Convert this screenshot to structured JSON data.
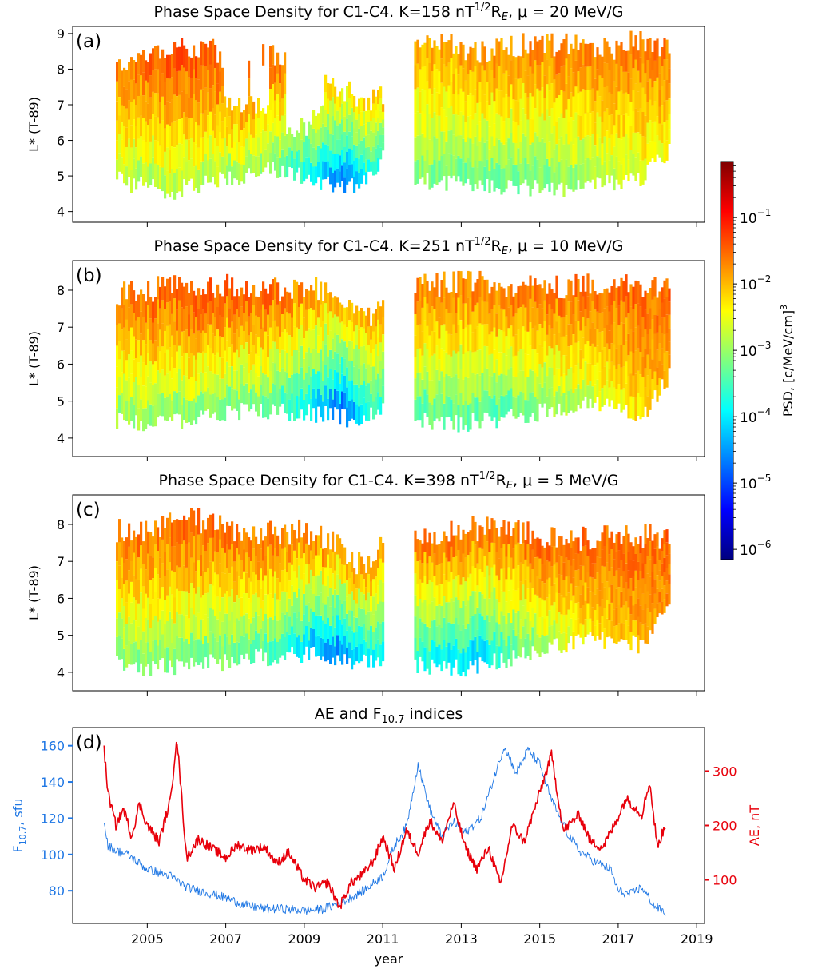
{
  "colorbar": {
    "label": "PSD, [c/MeV/cm]",
    "label_sup": "3",
    "scale": "log",
    "range": [
      7e-07,
      0.7
    ],
    "ticks": [
      {
        "base": "10",
        "exp": "−1",
        "value": 0.1
      },
      {
        "base": "10",
        "exp": "−2",
        "value": 0.01
      },
      {
        "base": "10",
        "exp": "−3",
        "value": 0.001
      },
      {
        "base": "10",
        "exp": "−4",
        "value": 0.0001
      },
      {
        "base": "10",
        "exp": "−5",
        "value": 1e-05
      },
      {
        "base": "10",
        "exp": "−6",
        "value": 1e-06
      }
    ],
    "colormap": [
      "#00007f",
      "#0000ff",
      "#007fff",
      "#00ffff",
      "#7fff7f",
      "#ffff00",
      "#ff7f00",
      "#ff0000",
      "#7f0000"
    ]
  },
  "x_axis": {
    "label": "year",
    "ticks": [
      "2005",
      "2007",
      "2009",
      "2011",
      "2013",
      "2015",
      "2017",
      "2019"
    ],
    "range": [
      2003.1,
      2019.2
    ]
  },
  "chart_data": [
    {
      "type": "heatmap",
      "panel_label": "(a)",
      "title": {
        "pre": "Phase Space Density for C1-C4. K=158 nT",
        "sup": "1/2",
        "mid": "R",
        "sub": "E",
        "post": ", μ = 20 MeV/G"
      },
      "ylabel": "L* (T-89)",
      "ylim": [
        3.7,
        9.2
      ],
      "yticks": [
        "4",
        "5",
        "6",
        "7",
        "8",
        "9"
      ],
      "x_range": [
        2003.1,
        2019.2
      ],
      "data_segments": [
        [
          2004.2,
          2011.0
        ],
        [
          2011.8,
          2018.3
        ]
      ],
      "L_max": [
        [
          2004.2,
          8.1
        ],
        [
          2004.6,
          8.3
        ],
        [
          2005.0,
          8.5
        ],
        [
          2005.5,
          8.6
        ],
        [
          2006.0,
          8.5
        ],
        [
          2006.5,
          8.6
        ],
        [
          2007.0,
          8.3
        ],
        [
          2007.5,
          8.0
        ],
        [
          2008.0,
          8.5
        ],
        [
          2008.5,
          8.4
        ],
        [
          2009.0,
          8.3
        ],
        [
          2009.5,
          7.7
        ],
        [
          2010.0,
          7.4
        ],
        [
          2010.5,
          7.1
        ],
        [
          2011.0,
          7.3
        ],
        [
          2011.8,
          8.8
        ],
        [
          2012.5,
          8.7
        ],
        [
          2013.5,
          8.5
        ],
        [
          2014.5,
          8.7
        ],
        [
          2015.5,
          8.7
        ],
        [
          2016.5,
          8.5
        ],
        [
          2017.5,
          8.8
        ],
        [
          2018.3,
          8.6
        ]
      ],
      "L_min": [
        [
          2004.2,
          4.9
        ],
        [
          2004.6,
          4.6
        ],
        [
          2005.0,
          4.7
        ],
        [
          2005.5,
          4.4
        ],
        [
          2006.0,
          4.6
        ],
        [
          2006.5,
          4.7
        ],
        [
          2007.0,
          4.8
        ],
        [
          2007.5,
          4.9
        ],
        [
          2008.0,
          5.2
        ],
        [
          2008.5,
          5.0
        ],
        [
          2009.0,
          4.9
        ],
        [
          2009.5,
          4.7
        ],
        [
          2010.0,
          4.6
        ],
        [
          2010.5,
          4.7
        ],
        [
          2011.0,
          5.5
        ],
        [
          2011.8,
          4.8
        ],
        [
          2012.5,
          4.7
        ],
        [
          2013.5,
          4.6
        ],
        [
          2014.5,
          4.6
        ],
        [
          2015.5,
          4.5
        ],
        [
          2016.5,
          4.7
        ],
        [
          2017.5,
          4.8
        ],
        [
          2018.3,
          5.6
        ]
      ],
      "psd_log10_at_Lmin": [
        [
          2004.2,
          -3.0
        ],
        [
          2006.0,
          -3.0
        ],
        [
          2008.0,
          -3.2
        ],
        [
          2009.3,
          -4.3
        ],
        [
          2010.0,
          -5.2
        ],
        [
          2010.6,
          -4.0
        ],
        [
          2011.8,
          -3.3
        ],
        [
          2014.0,
          -3.5
        ],
        [
          2016.0,
          -3.2
        ],
        [
          2018.3,
          -2.5
        ]
      ],
      "psd_log10_at_Lmax": [
        [
          2004.2,
          -1.6
        ],
        [
          2006.0,
          -1.3
        ],
        [
          2008.0,
          -1.4
        ],
        [
          2010.0,
          -2.2
        ],
        [
          2011.0,
          -2.0
        ],
        [
          2011.8,
          -1.9
        ],
        [
          2014.0,
          -1.7
        ],
        [
          2016.0,
          -1.6
        ],
        [
          2018.3,
          -1.6
        ]
      ],
      "gaps": [
        {
          "x": [
            2006.9,
            2007.5
          ],
          "L": [
            7.0,
            8.4
          ]
        },
        {
          "x": [
            2007.6,
            2008.1
          ],
          "L": [
            7.0,
            8.4
          ]
        },
        {
          "x": [
            2008.5,
            2009.2
          ],
          "L": [
            6.4,
            8.5
          ]
        },
        {
          "x": [
            2009.2,
            2009.5
          ],
          "L": [
            6.8,
            8.5
          ]
        }
      ]
    },
    {
      "type": "heatmap",
      "panel_label": "(b)",
      "title": {
        "pre": "Phase Space Density for C1-C4. K=251 nT",
        "sup": "1/2",
        "mid": "R",
        "sub": "E",
        "post": ", μ = 10 MeV/G"
      },
      "ylabel": "L* (T-89)",
      "ylim": [
        3.5,
        8.8
      ],
      "yticks": [
        "4",
        "5",
        "6",
        "7",
        "8"
      ],
      "x_range": [
        2003.1,
        2019.2
      ],
      "data_segments": [
        [
          2004.2,
          2011.0
        ],
        [
          2011.8,
          2018.3
        ]
      ],
      "L_max": [
        [
          2004.2,
          7.9
        ],
        [
          2005.0,
          8.0
        ],
        [
          2006.0,
          8.2
        ],
        [
          2007.0,
          8.1
        ],
        [
          2008.0,
          8.0
        ],
        [
          2009.0,
          8.1
        ],
        [
          2009.7,
          7.9
        ],
        [
          2010.2,
          7.3
        ],
        [
          2010.6,
          7.2
        ],
        [
          2011.0,
          7.8
        ],
        [
          2011.8,
          8.1
        ],
        [
          2013.0,
          8.2
        ],
        [
          2014.5,
          8.1
        ],
        [
          2016.0,
          8.1
        ],
        [
          2017.0,
          8.2
        ],
        [
          2018.3,
          8.0
        ]
      ],
      "L_min": [
        [
          2004.2,
          4.4
        ],
        [
          2005.0,
          4.3
        ],
        [
          2006.0,
          4.4
        ],
        [
          2007.0,
          4.6
        ],
        [
          2008.0,
          4.6
        ],
        [
          2009.0,
          4.6
        ],
        [
          2009.7,
          4.5
        ],
        [
          2010.3,
          4.4
        ],
        [
          2010.8,
          4.6
        ],
        [
          2011.0,
          4.6
        ],
        [
          2011.8,
          4.4
        ],
        [
          2013.0,
          4.3
        ],
        [
          2014.0,
          4.4
        ],
        [
          2015.0,
          4.6
        ],
        [
          2016.0,
          4.8
        ],
        [
          2017.0,
          4.8
        ],
        [
          2017.5,
          4.3
        ],
        [
          2018.3,
          5.6
        ]
      ],
      "psd_log10_at_Lmin": [
        [
          2004.2,
          -3.2
        ],
        [
          2006.0,
          -3.3
        ],
        [
          2008.0,
          -3.5
        ],
        [
          2009.5,
          -4.6
        ],
        [
          2010.0,
          -5.3
        ],
        [
          2010.6,
          -4.0
        ],
        [
          2011.8,
          -3.6
        ],
        [
          2014.0,
          -3.6
        ],
        [
          2016.0,
          -3.0
        ],
        [
          2018.3,
          -2.0
        ]
      ],
      "psd_log10_at_Lmax": [
        [
          2004.2,
          -1.6
        ],
        [
          2006.0,
          -1.3
        ],
        [
          2008.0,
          -1.4
        ],
        [
          2010.0,
          -1.9
        ],
        [
          2011.0,
          -1.8
        ],
        [
          2011.8,
          -1.6
        ],
        [
          2014.0,
          -1.6
        ],
        [
          2016.0,
          -1.5
        ],
        [
          2018.3,
          -1.5
        ]
      ],
      "gaps": []
    },
    {
      "type": "heatmap",
      "panel_label": "(c)",
      "title": {
        "pre": "Phase Space Density for C1-C4. K=398 nT",
        "sup": "1/2",
        "mid": "R",
        "sub": "E",
        "post": ", μ = 5 MeV/G"
      },
      "ylabel": "L* (T-89)",
      "ylim": [
        3.5,
        8.8
      ],
      "yticks": [
        "4",
        "5",
        "6",
        "7",
        "8"
      ],
      "x_range": [
        2003.1,
        2019.2
      ],
      "data_segments": [
        [
          2004.2,
          2011.0
        ],
        [
          2011.8,
          2018.3
        ]
      ],
      "L_max": [
        [
          2004.2,
          7.8
        ],
        [
          2005.0,
          7.8
        ],
        [
          2006.0,
          8.2
        ],
        [
          2007.0,
          7.9
        ],
        [
          2008.0,
          7.8
        ],
        [
          2009.0,
          7.8
        ],
        [
          2009.7,
          7.6
        ],
        [
          2010.2,
          7.0
        ],
        [
          2010.6,
          7.0
        ],
        [
          2011.0,
          7.5
        ],
        [
          2011.8,
          7.6
        ],
        [
          2013.0,
          7.9
        ],
        [
          2014.5,
          7.8
        ],
        [
          2016.0,
          7.6
        ],
        [
          2017.0,
          7.8
        ],
        [
          2018.3,
          7.6
        ]
      ],
      "L_min": [
        [
          2004.2,
          4.1
        ],
        [
          2005.0,
          4.0
        ],
        [
          2006.0,
          4.1
        ],
        [
          2007.0,
          4.2
        ],
        [
          2008.0,
          4.3
        ],
        [
          2009.0,
          4.4
        ],
        [
          2009.7,
          4.3
        ],
        [
          2010.3,
          4.1
        ],
        [
          2010.8,
          4.2
        ],
        [
          2011.0,
          4.3
        ],
        [
          2011.8,
          4.1
        ],
        [
          2013.0,
          4.0
        ],
        [
          2014.0,
          4.2
        ],
        [
          2015.0,
          4.5
        ],
        [
          2016.0,
          4.7
        ],
        [
          2017.0,
          4.8
        ],
        [
          2017.5,
          4.6
        ],
        [
          2018.3,
          5.6
        ]
      ],
      "psd_log10_at_Lmin": [
        [
          2004.2,
          -3.3
        ],
        [
          2006.0,
          -3.4
        ],
        [
          2008.0,
          -3.6
        ],
        [
          2009.5,
          -4.8
        ],
        [
          2010.0,
          -5.0
        ],
        [
          2010.6,
          -4.2
        ],
        [
          2011.8,
          -4.0
        ],
        [
          2013.5,
          -4.5
        ],
        [
          2014.0,
          -3.8
        ],
        [
          2016.0,
          -2.5
        ],
        [
          2018.3,
          -1.8
        ]
      ],
      "psd_log10_at_Lmax": [
        [
          2004.2,
          -1.6
        ],
        [
          2006.0,
          -1.4
        ],
        [
          2008.0,
          -1.5
        ],
        [
          2010.0,
          -1.7
        ],
        [
          2011.0,
          -1.7
        ],
        [
          2011.8,
          -1.5
        ],
        [
          2014.0,
          -1.5
        ],
        [
          2016.0,
          -1.5
        ],
        [
          2018.3,
          -1.5
        ]
      ],
      "gaps": []
    },
    {
      "type": "line",
      "panel_label": "(d)",
      "title": {
        "pre": "AE and F",
        "sub": "10.7",
        "post": " indices"
      },
      "xlabel": "year",
      "x_range": [
        2003.1,
        2019.2
      ],
      "left_axis": {
        "label_pre": "F",
        "label_sub": "10.7",
        "label_post": ", sfu",
        "ylim": [
          62,
          170
        ],
        "ticks": [
          "80",
          "100",
          "120",
          "140",
          "160"
        ],
        "color": "#1f77e4"
      },
      "right_axis": {
        "label": "AE, nT",
        "ylim": [
          20,
          380
        ],
        "ticks": [
          "100",
          "200",
          "300"
        ],
        "color": "#e8000b"
      },
      "series": [
        {
          "name": "F10.7",
          "axis": "left",
          "color": "#1f77e4",
          "x": [
            2003.9,
            2004.0,
            2004.2,
            2004.5,
            2004.8,
            2005.0,
            2005.3,
            2005.6,
            2006.0,
            2006.3,
            2006.7,
            2007.0,
            2007.5,
            2008.0,
            2008.5,
            2009.0,
            2009.5,
            2010.0,
            2010.5,
            2011.0,
            2011.3,
            2011.6,
            2011.9,
            2012.2,
            2012.5,
            2012.8,
            2013.1,
            2013.5,
            2013.8,
            2014.1,
            2014.4,
            2014.7,
            2015.0,
            2015.3,
            2015.7,
            2016.0,
            2016.4,
            2016.8,
            2017.0,
            2017.3,
            2017.6,
            2017.9,
            2018.2
          ],
          "y": [
            118,
            105,
            102,
            100,
            95,
            92,
            90,
            88,
            82,
            80,
            78,
            76,
            72,
            70,
            70,
            69,
            70,
            74,
            80,
            88,
            105,
            115,
            150,
            125,
            110,
            118,
            112,
            120,
            140,
            160,
            145,
            158,
            150,
            130,
            112,
            102,
            96,
            92,
            80,
            78,
            82,
            72,
            68
          ]
        },
        {
          "name": "AE",
          "axis": "right",
          "color": "#e8000b",
          "x": [
            2003.9,
            2004.0,
            2004.2,
            2004.4,
            2004.6,
            2004.8,
            2005.0,
            2005.3,
            2005.6,
            2005.75,
            2006.0,
            2006.3,
            2006.6,
            2007.0,
            2007.3,
            2007.6,
            2008.0,
            2008.3,
            2008.6,
            2009.0,
            2009.3,
            2009.6,
            2009.9,
            2010.2,
            2010.5,
            2010.8,
            2011.0,
            2011.3,
            2011.6,
            2011.9,
            2012.2,
            2012.5,
            2012.8,
            2013.1,
            2013.4,
            2013.7,
            2014.0,
            2014.3,
            2014.6,
            2015.0,
            2015.3,
            2015.6,
            2016.0,
            2016.3,
            2016.6,
            2016.9,
            2017.2,
            2017.6,
            2017.8,
            2018.0,
            2018.2
          ],
          "y": [
            340,
            260,
            200,
            230,
            180,
            240,
            200,
            170,
            250,
            365,
            140,
            175,
            160,
            140,
            165,
            155,
            160,
            130,
            150,
            100,
            85,
            95,
            50,
            95,
            110,
            140,
            180,
            120,
            190,
            150,
            210,
            170,
            240,
            160,
            120,
            160,
            90,
            200,
            170,
            260,
            330,
            190,
            220,
            170,
            160,
            200,
            250,
            220,
            280,
            160,
            200
          ]
        }
      ]
    }
  ]
}
